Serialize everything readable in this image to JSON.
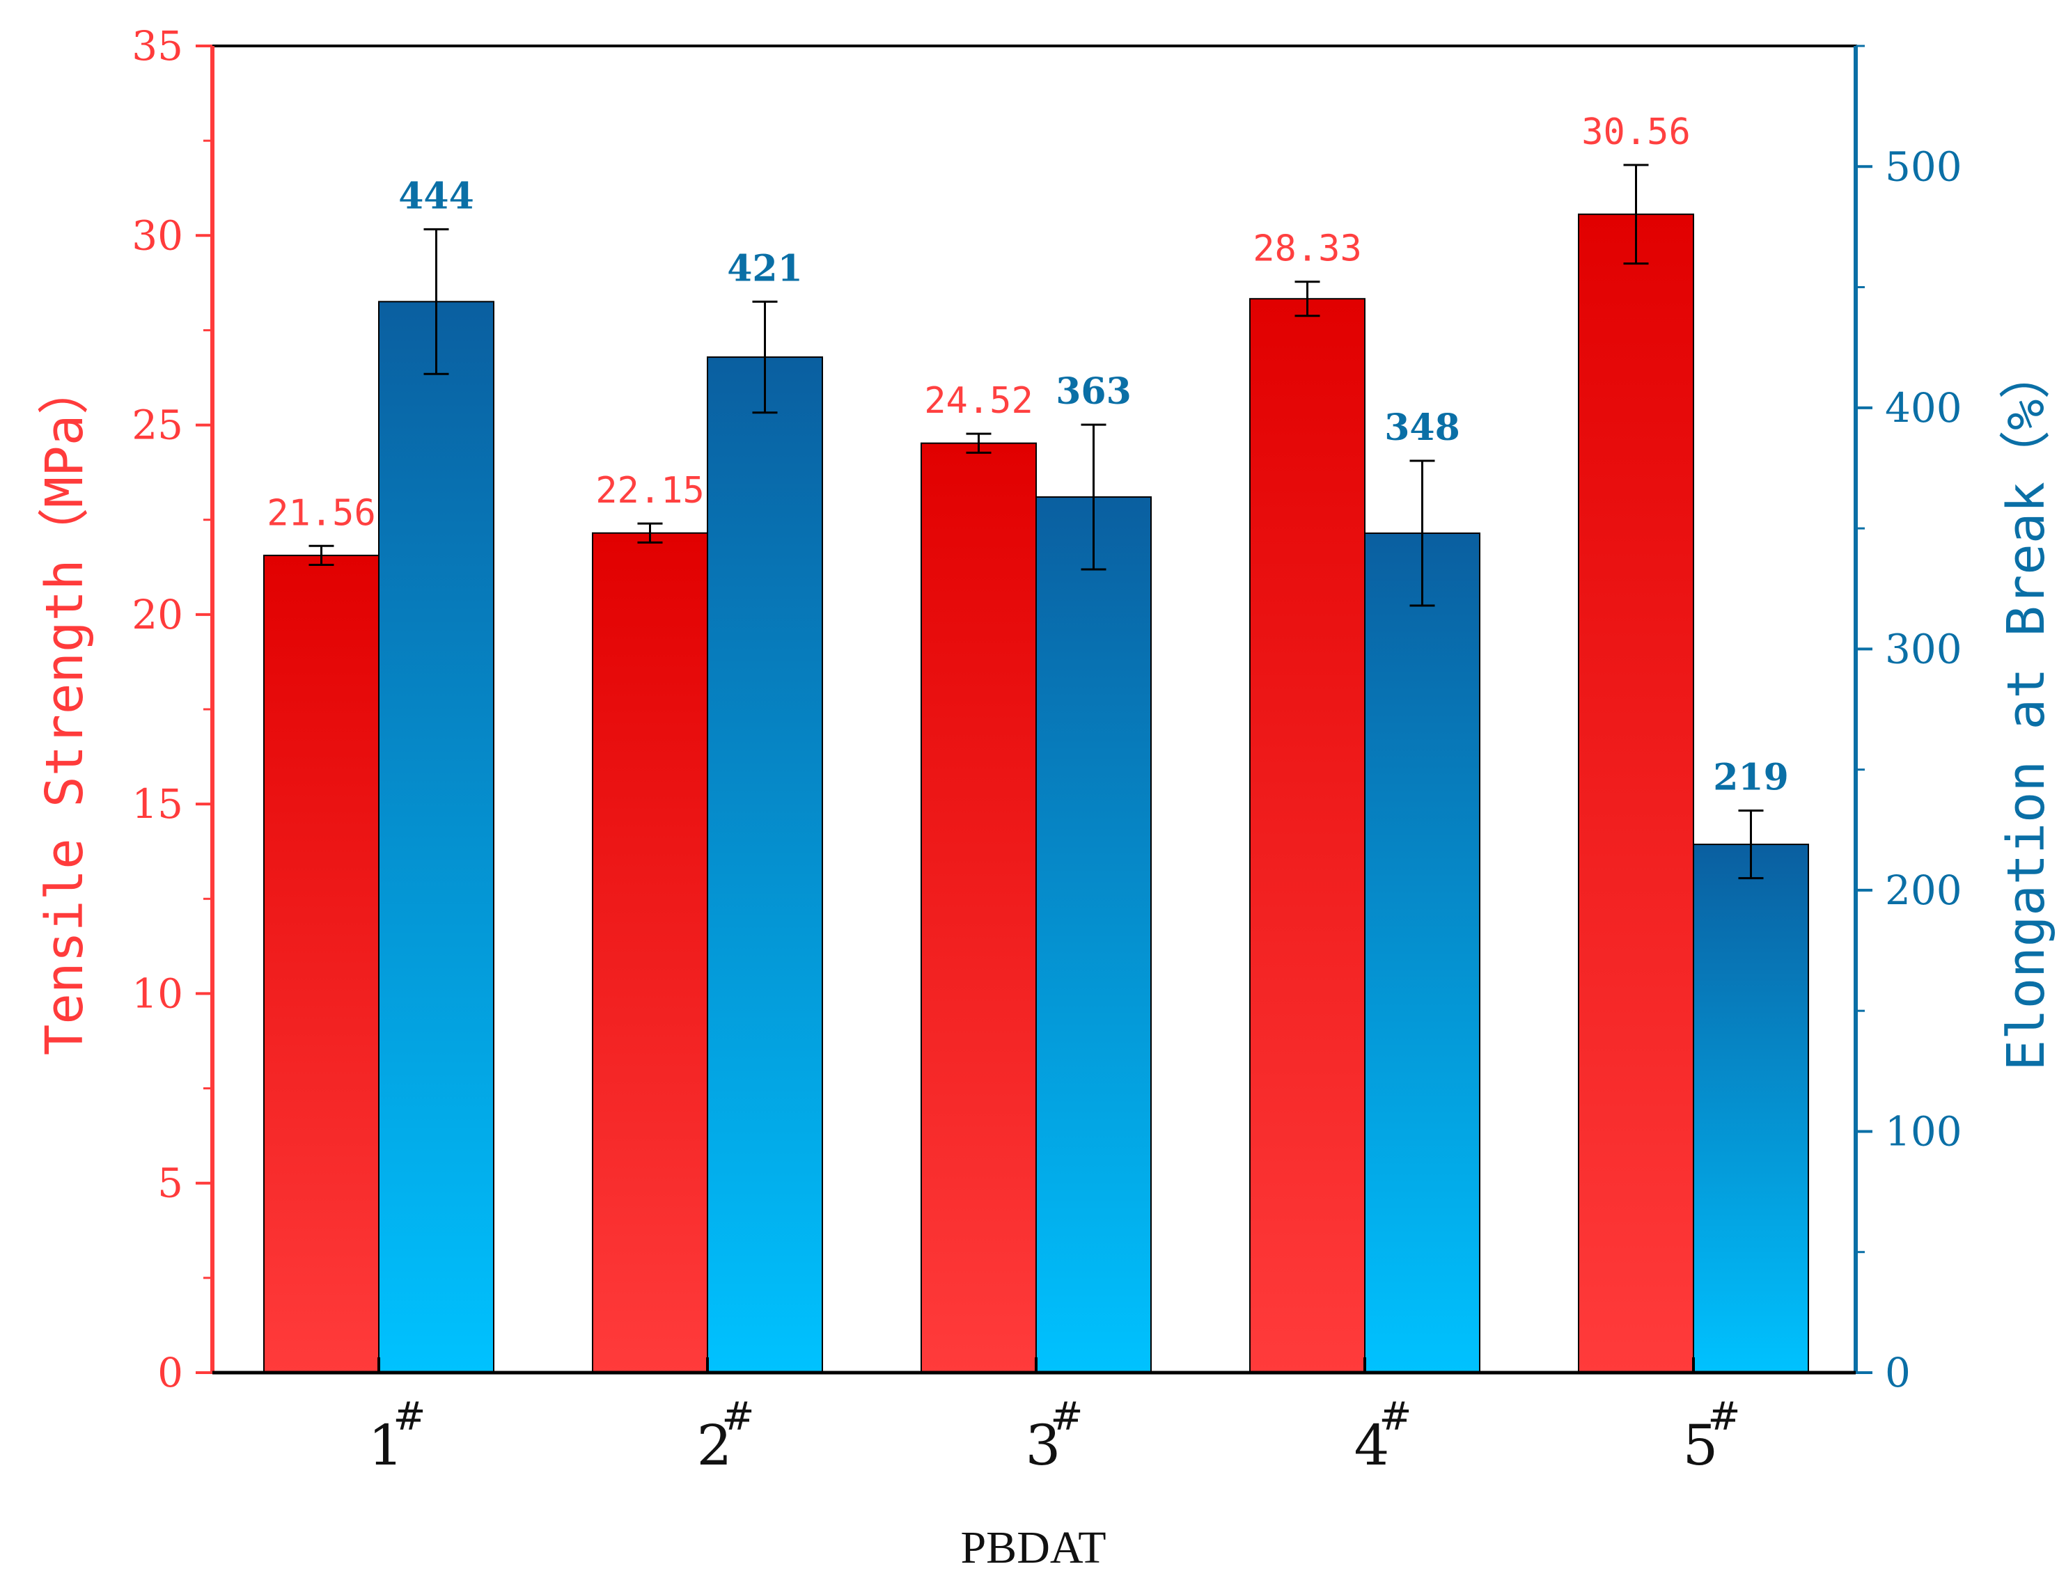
{
  "chart_data": {
    "type": "bar",
    "x_title": "PBDAT",
    "categories": [
      {
        "num": "1",
        "sup": "#"
      },
      {
        "num": "2",
        "sup": "#"
      },
      {
        "num": "3",
        "sup": "#"
      },
      {
        "num": "4",
        "sup": "#"
      },
      {
        "num": "5",
        "sup": "#"
      }
    ],
    "series": [
      {
        "name": "Tensile Strength",
        "axis": "left",
        "values": [
          21.56,
          22.15,
          24.52,
          28.33,
          30.56
        ],
        "value_labels": [
          "21.56",
          "22.15",
          "24.52",
          "28.33",
          "30.56"
        ],
        "error": [
          0.25,
          0.25,
          0.25,
          0.45,
          1.3
        ],
        "gradient_top": "#e10000",
        "gradient_bottom": "#ff3b3b",
        "label_color": "#ff4040"
      },
      {
        "name": "Elongation at Break",
        "axis": "right",
        "values": [
          444,
          421,
          363,
          348,
          219
        ],
        "value_labels": [
          "444",
          "421",
          "363",
          "348",
          "219"
        ],
        "error": [
          30,
          23,
          30,
          30,
          14
        ],
        "gradient_top": "#0a5fa0",
        "gradient_bottom": "#00c2ff",
        "label_color": "#0a6fa6"
      }
    ],
    "y_left": {
      "label": "Tensile Strength（MPa）",
      "ylim": [
        0,
        35
      ],
      "ticks": [
        "0",
        "5",
        "10",
        "15",
        "20",
        "25",
        "30",
        "35"
      ],
      "color": "#ff3b3b"
    },
    "y_right": {
      "label": "Elongation at Break（%）",
      "ylim": [
        0,
        550
      ],
      "ticks": [
        "0",
        "100",
        "200",
        "300",
        "400",
        "500"
      ],
      "color": "#0a6fa6"
    },
    "grid": false,
    "legend": "none"
  }
}
